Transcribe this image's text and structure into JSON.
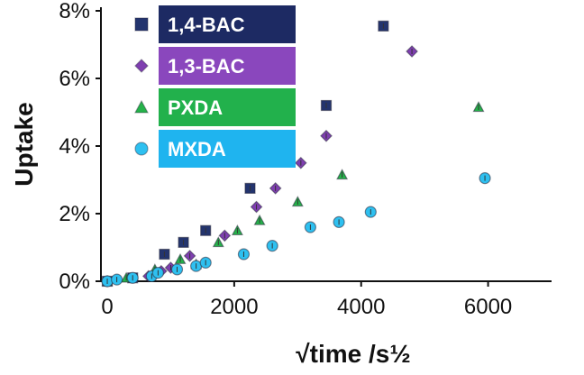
{
  "chart_data": {
    "type": "scatter",
    "title": "",
    "xlabel": "√time /s½",
    "ylabel": "Uptake",
    "xlim": [
      -100,
      7000
    ],
    "ylim": [
      0,
      8
    ],
    "x_ticks": [
      0,
      2000,
      4000,
      6000
    ],
    "x_tick_labels": [
      "0",
      "2000",
      "4000",
      "6000"
    ],
    "y_ticks": [
      0,
      2,
      4,
      6,
      8
    ],
    "y_tick_labels": [
      "0%",
      "2%",
      "4%",
      "6%",
      "8%"
    ],
    "grid": false,
    "legend_position": "top-left",
    "series": [
      {
        "name": "1,4-BAC",
        "marker": "square",
        "color": "#23346e",
        "label_bg": "#1d2a63",
        "points": [
          [
            0,
            0
          ],
          [
            400,
            0.1
          ],
          [
            900,
            0.8
          ],
          [
            1200,
            1.15
          ],
          [
            1550,
            1.5
          ],
          [
            2250,
            2.75
          ],
          [
            3450,
            5.2
          ],
          [
            4350,
            7.55
          ]
        ]
      },
      {
        "name": "1,3-BAC",
        "marker": "diamond",
        "color": "#7f3fb0",
        "label_bg": "#8a47bd",
        "points": [
          [
            0,
            0
          ],
          [
            650,
            0.15
          ],
          [
            850,
            0.3
          ],
          [
            1000,
            0.4
          ],
          [
            1300,
            0.75
          ],
          [
            1850,
            1.35
          ],
          [
            2350,
            2.2
          ],
          [
            2650,
            2.75
          ],
          [
            3050,
            3.5
          ],
          [
            3450,
            4.3
          ],
          [
            4800,
            6.8
          ]
        ]
      },
      {
        "name": "PXDA",
        "marker": "triangle",
        "color": "#25b24a",
        "label_bg": "#22b14c",
        "points": [
          [
            0,
            0
          ],
          [
            300,
            0.1
          ],
          [
            750,
            0.35
          ],
          [
            1150,
            0.65
          ],
          [
            1400,
            0.5
          ],
          [
            1750,
            1.15
          ],
          [
            2050,
            1.5
          ],
          [
            2400,
            1.8
          ],
          [
            3000,
            2.35
          ],
          [
            3700,
            3.15
          ],
          [
            5850,
            5.15
          ]
        ]
      },
      {
        "name": "MXDA",
        "marker": "circle",
        "color": "#2ec0f0",
        "label_bg": "#1fb4ef",
        "points": [
          [
            0,
            0
          ],
          [
            150,
            0.05
          ],
          [
            400,
            0.1
          ],
          [
            700,
            0.15
          ],
          [
            800,
            0.25
          ],
          [
            1100,
            0.35
          ],
          [
            1400,
            0.45
          ],
          [
            1550,
            0.55
          ],
          [
            2150,
            0.8
          ],
          [
            2600,
            1.05
          ],
          [
            3200,
            1.6
          ],
          [
            3650,
            1.75
          ],
          [
            4150,
            2.05
          ],
          [
            5950,
            3.05
          ]
        ]
      }
    ]
  }
}
